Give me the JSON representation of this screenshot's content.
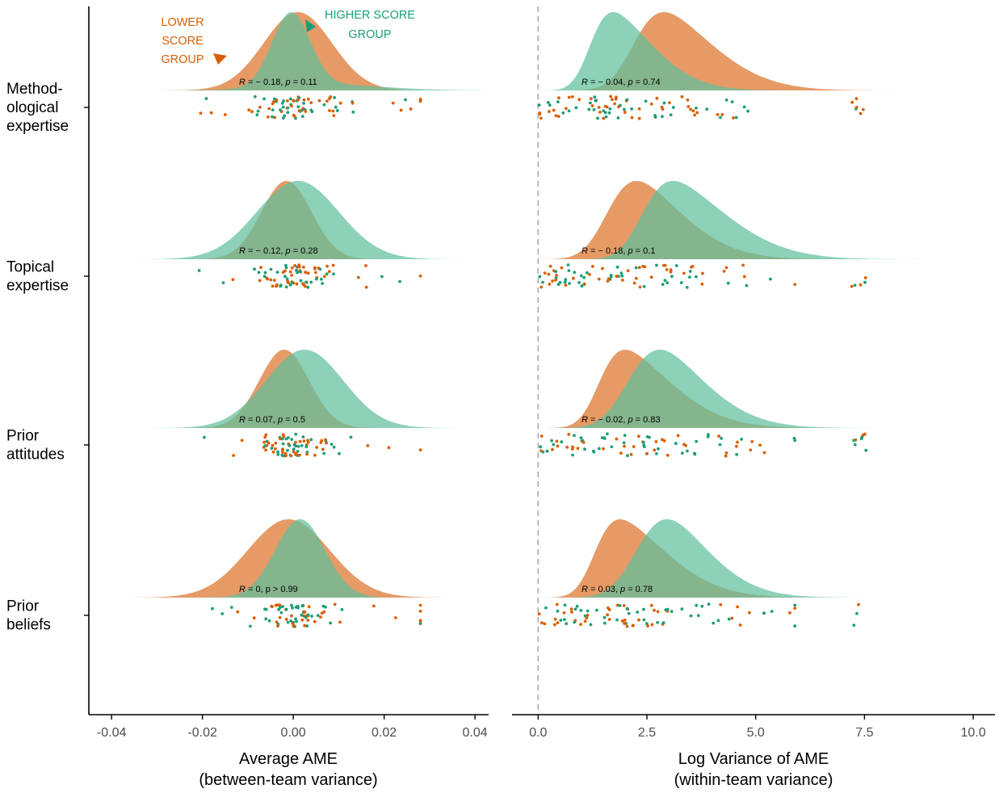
{
  "colors": {
    "lower": "#d95f02",
    "higher": "#1b9e77",
    "lower_fill": "#e69a66",
    "higher_fill": "#5fbf9c",
    "overlap_fill": "#af8f5c",
    "axis": "#000000",
    "tick_label": "#4d4d4d",
    "refline": "#aaaaaa"
  },
  "chart_data": {
    "type": "raincloud",
    "annotations": {
      "lower_label": [
        "LOWER",
        "SCORE",
        "GROUP"
      ],
      "higher_label": [
        "HIGHER SCORE",
        "GROUP"
      ]
    },
    "groups": [
      {
        "label": [
          "Method-",
          "ological",
          "expertise"
        ],
        "left_stat": {
          "r": "− 0.18",
          "p": "0.11"
        },
        "right_stat": {
          "r": "− 0.04",
          "p": "0.74"
        },
        "left_lower": {
          "mean": 0.001,
          "sd": 0.0075
        },
        "left_higher": {
          "mean": -0.0005,
          "sd": 0.0042,
          "mix": 0.18,
          "mean2": 0.008,
          "sd2": 0.012
        },
        "right_lower": {
          "mean": 2.2,
          "sd": 1.5,
          "skew": 3.2
        },
        "right_higher": {
          "mean": 1.2,
          "sd": 1.2,
          "skew": 3.6
        }
      },
      {
        "label": [
          "Topical",
          "expertise"
        ],
        "left_stat": {
          "r": "− 0.12",
          "p": "0.28"
        },
        "right_stat": {
          "r": "− 0.18",
          "p": "0.1"
        },
        "left_lower": {
          "mean": -0.0015,
          "sd": 0.0055
        },
        "left_higher": {
          "mean": 0.001,
          "sd": 0.009
        },
        "right_lower": {
          "mean": 1.6,
          "sd": 1.4,
          "skew": 3.0
        },
        "right_higher": {
          "mean": 2.4,
          "sd": 1.6,
          "skew": 3.6
        }
      },
      {
        "label": [
          "Prior",
          "attitudes"
        ],
        "left_stat": {
          "r": "0.07",
          "p": "0.5"
        },
        "right_stat": {
          "r": "− 0.02",
          "p": "0.83"
        },
        "left_lower": {
          "mean": -0.002,
          "sd": 0.0055
        },
        "left_higher": {
          "mean": 0.0025,
          "sd": 0.0085
        },
        "right_lower": {
          "mean": 1.4,
          "sd": 1.4,
          "skew": 3.8
        },
        "right_higher": {
          "mean": 2.1,
          "sd": 1.4,
          "skew": 2.6
        }
      },
      {
        "label": [
          "Prior",
          "beliefs"
        ],
        "left_stat": {
          "r": "0",
          "p": "> 0.99",
          "p_op": true
        },
        "right_stat": {
          "r": "0.03",
          "p": "0.78"
        },
        "left_lower": {
          "mean": -0.001,
          "sd": 0.009
        },
        "left_higher": {
          "mean": 0.0015,
          "sd": 0.0055
        },
        "right_lower": {
          "mean": 1.3,
          "sd": 1.4,
          "skew": 4.0
        },
        "right_higher": {
          "mean": 2.3,
          "sd": 1.3,
          "skew": 2.4
        }
      }
    ],
    "left_panel": {
      "xlabel_line1": "Average AME",
      "xlabel_line2": "(between-team variance)",
      "xlim": [
        -0.045,
        0.043
      ],
      "ticks": [
        -0.04,
        -0.02,
        0.0,
        0.02,
        0.04
      ],
      "tick_labels": [
        "-0.04",
        "-0.02",
        "0.00",
        "0.02",
        "0.04"
      ]
    },
    "right_panel": {
      "xlabel_line1": "Log Variance of AME",
      "xlabel_line2": "(within-team variance)",
      "xlim": [
        -0.6,
        10.5
      ],
      "ticks": [
        0.0,
        2.5,
        5.0,
        7.5,
        10.0
      ],
      "tick_labels": [
        "0.0",
        "2.5",
        "5.0",
        "7.5",
        "10.0"
      ],
      "reference_line": 0.0
    }
  }
}
